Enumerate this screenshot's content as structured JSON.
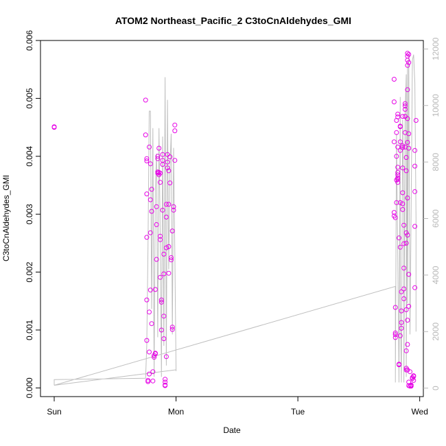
{
  "chart_data": {
    "type": "scatter",
    "title": "ATOM2 Northeast_Pacific_2 C3toCnAldehydes_GMI",
    "xlabel": "Date",
    "ylabel": "C3toCnAldehydes_GMI",
    "xlim": [
      0,
      3.03
    ],
    "ylim": [
      -0.00015,
      0.006
    ],
    "x_ticks": [
      {
        "value": 0,
        "label": "Sun"
      },
      {
        "value": 1,
        "label": "Mon"
      },
      {
        "value": 2,
        "label": "Tue"
      },
      {
        "value": 3,
        "label": "Wed"
      }
    ],
    "y_ticks": [
      {
        "value": 0.0,
        "label": "0.000"
      },
      {
        "value": 0.001,
        "label": "0.001"
      },
      {
        "value": 0.002,
        "label": "0.002"
      },
      {
        "value": 0.003,
        "label": "0.003"
      },
      {
        "value": 0.004,
        "label": "0.004"
      },
      {
        "value": 0.005,
        "label": "0.005"
      },
      {
        "value": 0.006,
        "label": "0.006"
      }
    ],
    "y2lim": [
      -300,
      12300
    ],
    "y2_ticks": [
      {
        "value": 0,
        "label": "0"
      },
      {
        "value": 2000,
        "label": "2000"
      },
      {
        "value": 4000,
        "label": "4000"
      },
      {
        "value": 6000,
        "label": "6000"
      },
      {
        "value": 8000,
        "label": "8000"
      },
      {
        "value": 10000,
        "label": "10000"
      },
      {
        "value": 12000,
        "label": "12000"
      }
    ],
    "grid": false,
    "colors": {
      "points": "#e600e6",
      "altitude": "#bebebe",
      "axis": "#000000",
      "right_axis": "#b8b8b8"
    },
    "series": [
      {
        "kind": "points",
        "axis": "left",
        "points": [
          [
            0.0,
            0.00451
          ],
          [
            0.0,
            0.0045
          ],
          [
            0.75,
            0.00497
          ],
          [
            0.75,
            0.00437
          ],
          [
            0.76,
            0.00396
          ],
          [
            0.76,
            0.00392
          ],
          [
            0.76,
            0.00335
          ],
          [
            0.76,
            0.0026
          ],
          [
            0.76,
            0.00152
          ],
          [
            0.76,
            0.00082
          ],
          [
            0.77,
            0.00013
          ],
          [
            0.77,
            0.00011
          ],
          [
            0.78,
            0.00062
          ],
          [
            0.78,
            0.00131
          ],
          [
            0.78,
            0.00024
          ],
          [
            0.78,
            0.00416
          ],
          [
            0.79,
            0.00387
          ],
          [
            0.79,
            0.00325
          ],
          [
            0.79,
            0.00268
          ],
          [
            0.79,
            0.00169
          ],
          [
            0.8,
            0.00111
          ],
          [
            0.8,
            0.00305
          ],
          [
            0.8,
            0.00343
          ],
          [
            0.81,
            0.00028
          ],
          [
            0.81,
            0.00012
          ],
          [
            0.82,
            0.00053
          ],
          [
            0.82,
            0.00056
          ],
          [
            0.83,
            0.00059
          ],
          [
            0.83,
            0.0006
          ],
          [
            0.83,
            0.0017
          ],
          [
            0.84,
            0.00222
          ],
          [
            0.84,
            0.00282
          ],
          [
            0.84,
            0.00313
          ],
          [
            0.85,
            0.00371
          ],
          [
            0.85,
            0.00373
          ],
          [
            0.85,
            0.00396
          ],
          [
            0.85,
            0.004
          ],
          [
            0.86,
            0.00372
          ],
          [
            0.86,
            0.00368
          ],
          [
            0.86,
            0.00414
          ],
          [
            0.87,
            0.00371
          ],
          [
            0.87,
            0.00355
          ],
          [
            0.87,
            0.00262
          ],
          [
            0.87,
            0.00256
          ],
          [
            0.87,
            0.00191
          ],
          [
            0.88,
            0.00152
          ],
          [
            0.88,
            0.00148
          ],
          [
            0.88,
            0.001
          ],
          [
            0.89,
            0.00403
          ],
          [
            0.89,
            0.00393
          ],
          [
            0.89,
            0.00386
          ],
          [
            0.89,
            0.00307
          ],
          [
            0.9,
            0.00231
          ],
          [
            0.9,
            0.00197
          ],
          [
            0.9,
            0.00124
          ],
          [
            0.9,
            0.00085
          ],
          [
            0.91,
            0.00015
          ],
          [
            0.91,
            0.0001
          ],
          [
            0.91,
            4e-05
          ],
          [
            0.91,
            5e-05
          ],
          [
            0.92,
            0.00054
          ],
          [
            0.92,
            0.00242
          ],
          [
            0.92,
            0.00295
          ],
          [
            0.92,
            0.00317
          ],
          [
            0.93,
            0.0038
          ],
          [
            0.93,
            0.0039
          ],
          [
            0.93,
            0.00403
          ],
          [
            0.94,
            0.00375
          ],
          [
            0.94,
            0.00317
          ],
          [
            0.94,
            0.00244
          ],
          [
            0.94,
            0.00198
          ],
          [
            0.95,
            0.00399
          ],
          [
            0.95,
            0.00354
          ],
          [
            0.96,
            0.00221
          ],
          [
            0.96,
            0.00225
          ],
          [
            0.97,
            0.00105
          ],
          [
            0.97,
            0.00101
          ],
          [
            0.97,
            0.00271
          ],
          [
            0.98,
            0.00313
          ],
          [
            0.98,
            0.00307
          ],
          [
            0.99,
            0.00393
          ],
          [
            0.99,
            0.00454
          ],
          [
            0.99,
            0.00444
          ],
          [
            2.79,
            0.00533
          ],
          [
            2.79,
            0.00494
          ],
          [
            2.79,
            0.00425
          ],
          [
            2.79,
            0.00303
          ],
          [
            2.79,
            0.00297
          ],
          [
            2.8,
            0.00294
          ],
          [
            2.8,
            0.00139
          ],
          [
            2.8,
            0.00095
          ],
          [
            2.8,
            0.00092
          ],
          [
            2.8,
            0.00087
          ],
          [
            2.81,
            0.00441
          ],
          [
            2.81,
            0.00462
          ],
          [
            2.81,
            0.004
          ],
          [
            2.81,
            0.00359
          ],
          [
            2.81,
            0.0032
          ],
          [
            2.82,
            0.00473
          ],
          [
            2.82,
            0.00468
          ],
          [
            2.82,
            0.00416
          ],
          [
            2.82,
            0.00381
          ],
          [
            2.82,
            0.00372
          ],
          [
            2.82,
            0.00368
          ],
          [
            2.82,
            0.00363
          ],
          [
            2.82,
            0.0036
          ],
          [
            2.82,
            0.00355
          ],
          [
            2.83,
            0.00259
          ],
          [
            2.83,
            0.00041
          ],
          [
            2.83,
            0.0004
          ],
          [
            2.84,
            0.00425
          ],
          [
            2.84,
            0.00452
          ],
          [
            2.84,
            0.00451
          ],
          [
            2.84,
            0.0041
          ],
          [
            2.84,
            0.0032
          ],
          [
            2.84,
            0.00243
          ],
          [
            2.84,
            0.0009
          ],
          [
            2.85,
            0.00166
          ],
          [
            2.85,
            0.00133
          ],
          [
            2.85,
            0.00113
          ],
          [
            2.85,
            0.00103
          ],
          [
            2.86,
            0.00469
          ],
          [
            2.86,
            0.00418
          ],
          [
            2.86,
            0.00415
          ],
          [
            2.86,
            0.0038
          ],
          [
            2.86,
            0.00337
          ],
          [
            2.86,
            0.00318
          ],
          [
            2.86,
            0.00308
          ],
          [
            2.87,
            0.00281
          ],
          [
            2.87,
            0.00249
          ],
          [
            2.87,
            0.00207
          ],
          [
            2.87,
            0.00171
          ],
          [
            2.87,
            0.00154
          ],
          [
            2.88,
            0.00491
          ],
          [
            2.88,
            0.00487
          ],
          [
            2.88,
            0.00481
          ],
          [
            2.88,
            0.00469
          ],
          [
            2.88,
            0.00441
          ],
          [
            2.88,
            0.00416
          ],
          [
            2.89,
            0.00398
          ],
          [
            2.89,
            0.00375
          ],
          [
            2.89,
            0.00268
          ],
          [
            2.89,
            0.0025
          ],
          [
            2.89,
            0.00135
          ],
          [
            2.89,
            0.00064
          ],
          [
            2.89,
            0.00034
          ],
          [
            2.89,
            0.00031
          ],
          [
            2.9,
            0.00578
          ],
          [
            2.9,
            0.00573
          ],
          [
            2.9,
            0.00566
          ],
          [
            2.9,
            0.00557
          ],
          [
            2.9,
            0.00515
          ],
          [
            2.9,
            0.00465
          ],
          [
            2.9,
            0.00424
          ],
          [
            2.9,
            0.00328
          ],
          [
            2.9,
            0.00264
          ],
          [
            2.9,
            0.00117
          ],
          [
            2.9,
            0.00075
          ],
          [
            2.9,
            0.00031
          ],
          [
            2.91,
            0.00576
          ],
          [
            2.91,
            0.00562
          ],
          [
            2.91,
            0.00439
          ],
          [
            2.91,
            0.00414
          ],
          [
            2.91,
            0.00196
          ],
          [
            2.91,
            0.00141
          ],
          [
            2.91,
            0.0001
          ],
          [
            2.91,
            4e-05
          ],
          [
            2.92,
            0.00028
          ],
          [
            2.92,
            3e-05
          ],
          [
            2.93,
            5e-05
          ],
          [
            2.93,
            3e-05
          ],
          [
            2.93,
            4e-05
          ],
          [
            2.94,
            0.00018
          ],
          [
            2.94,
            0.00016
          ],
          [
            2.95,
            0.0002
          ],
          [
            2.95,
            0.00021
          ],
          [
            2.95,
            0.00013
          ],
          [
            2.96,
            0.00173
          ],
          [
            2.96,
            0.00279
          ],
          [
            2.96,
            0.00339
          ],
          [
            2.96,
            0.00383
          ],
          [
            2.96,
            0.0041
          ],
          [
            2.97,
            0.00462
          ]
        ]
      },
      {
        "kind": "line",
        "axis": "right",
        "name": "",
        "points": [
          [
            0.0,
            250
          ],
          [
            0.0,
            100
          ],
          [
            0.0,
            300
          ],
          [
            0.75,
            350
          ],
          [
            0.76,
            1500
          ],
          [
            0.77,
            5000
          ],
          [
            0.78,
            9800
          ],
          [
            0.79,
            9800
          ],
          [
            0.8,
            2800
          ],
          [
            0.81,
            9200
          ],
          [
            0.82,
            400
          ],
          [
            0.83,
            7000
          ],
          [
            0.84,
            8300
          ],
          [
            0.85,
            1800
          ],
          [
            0.86,
            9200
          ],
          [
            0.87,
            5500
          ],
          [
            0.88,
            400
          ],
          [
            0.89,
            8900
          ],
          [
            0.9,
            1500
          ],
          [
            0.91,
            11000
          ],
          [
            0.92,
            800
          ],
          [
            0.93,
            10200
          ],
          [
            0.94,
            4200
          ],
          [
            0.95,
            7800
          ],
          [
            0.96,
            9000
          ],
          [
            0.97,
            1900
          ],
          [
            0.98,
            8500
          ],
          [
            0.99,
            4800
          ],
          [
            1.0,
            600
          ],
          [
            1.0,
            650
          ],
          [
            0.0,
            100
          ],
          [
            2.8,
            3600
          ],
          [
            2.8,
            200
          ],
          [
            2.81,
            9000
          ],
          [
            2.82,
            4700
          ],
          [
            2.83,
            200
          ],
          [
            2.84,
            10300
          ],
          [
            2.84,
            3200
          ],
          [
            2.85,
            200
          ],
          [
            2.86,
            9500
          ],
          [
            2.87,
            6300
          ],
          [
            2.87,
            200
          ],
          [
            2.88,
            9800
          ],
          [
            2.89,
            11100
          ],
          [
            2.89,
            400
          ],
          [
            2.9,
            11500
          ],
          [
            2.9,
            3000
          ],
          [
            2.91,
            11800
          ],
          [
            2.92,
            1900
          ],
          [
            2.93,
            6300
          ],
          [
            2.94,
            11600
          ],
          [
            2.95,
            11800
          ],
          [
            2.96,
            10800
          ],
          [
            2.97,
            6000
          ],
          [
            2.97,
            2000
          ]
        ]
      }
    ]
  }
}
